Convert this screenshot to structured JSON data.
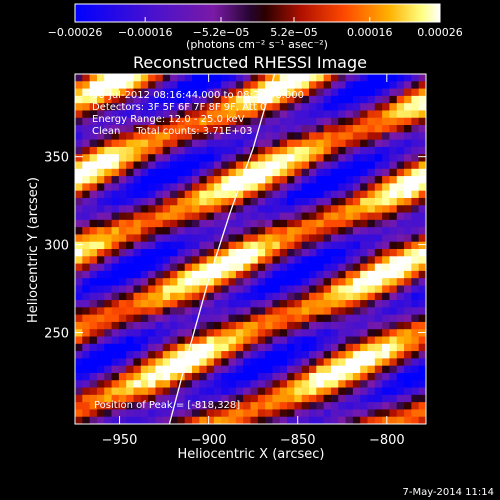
{
  "chart_data": {
    "type": "heatmap",
    "title": "Reconstructed RHESSI Image",
    "xlabel": "Heliocentric X (arcsec)",
    "ylabel": "Heliocentric Y (arcsec)",
    "xlim": [
      -975,
      -778
    ],
    "ylim": [
      198,
      397
    ],
    "x_ticks": [
      -950,
      -900,
      -850,
      -800
    ],
    "x_tick_labels": [
      "−950",
      "−900",
      "−850",
      "−800"
    ],
    "y_ticks": [
      250,
      300,
      350
    ],
    "y_tick_labels": [
      "250",
      "300",
      "350"
    ],
    "colorbar": {
      "range": [
        -0.00026,
        0.00026
      ],
      "ticks": [
        -0.00026,
        -0.00016,
        -5.2e-05,
        5.2e-05,
        0.00016,
        0.00026
      ],
      "tick_labels": [
        "−0.00026",
        "−0.00016",
        "−5.2e−05",
        "5.2e−05",
        "0.00016",
        "0.00026"
      ],
      "units": "(photons cm⁻² s⁻¹ asec⁻²)"
    },
    "annotations": [
      "30-Jul-2012 08:16:44.000 to 08:20:48.000",
      "Detectors: 3F 5F 6F 7F 8F 9F, Att 0",
      "Energy Range: 12.0 - 25.0 keV",
      "Clean     Total counts: 3.71E+03"
    ],
    "peak_label": "Position of Peak = [-818,328]",
    "peak": [
      -818,
      328
    ],
    "limb_line": [
      [
        -922,
        198
      ],
      [
        -911,
        240
      ],
      [
        -900,
        280
      ],
      [
        -888,
        318
      ],
      [
        -875,
        355
      ],
      [
        -863,
        397
      ]
    ],
    "grid": false,
    "stripes": {
      "orientation_deg": -25,
      "amplitude": 0.00022,
      "pixels": 48
    }
  },
  "footer": {
    "date": "7-May-2014 11:14"
  }
}
